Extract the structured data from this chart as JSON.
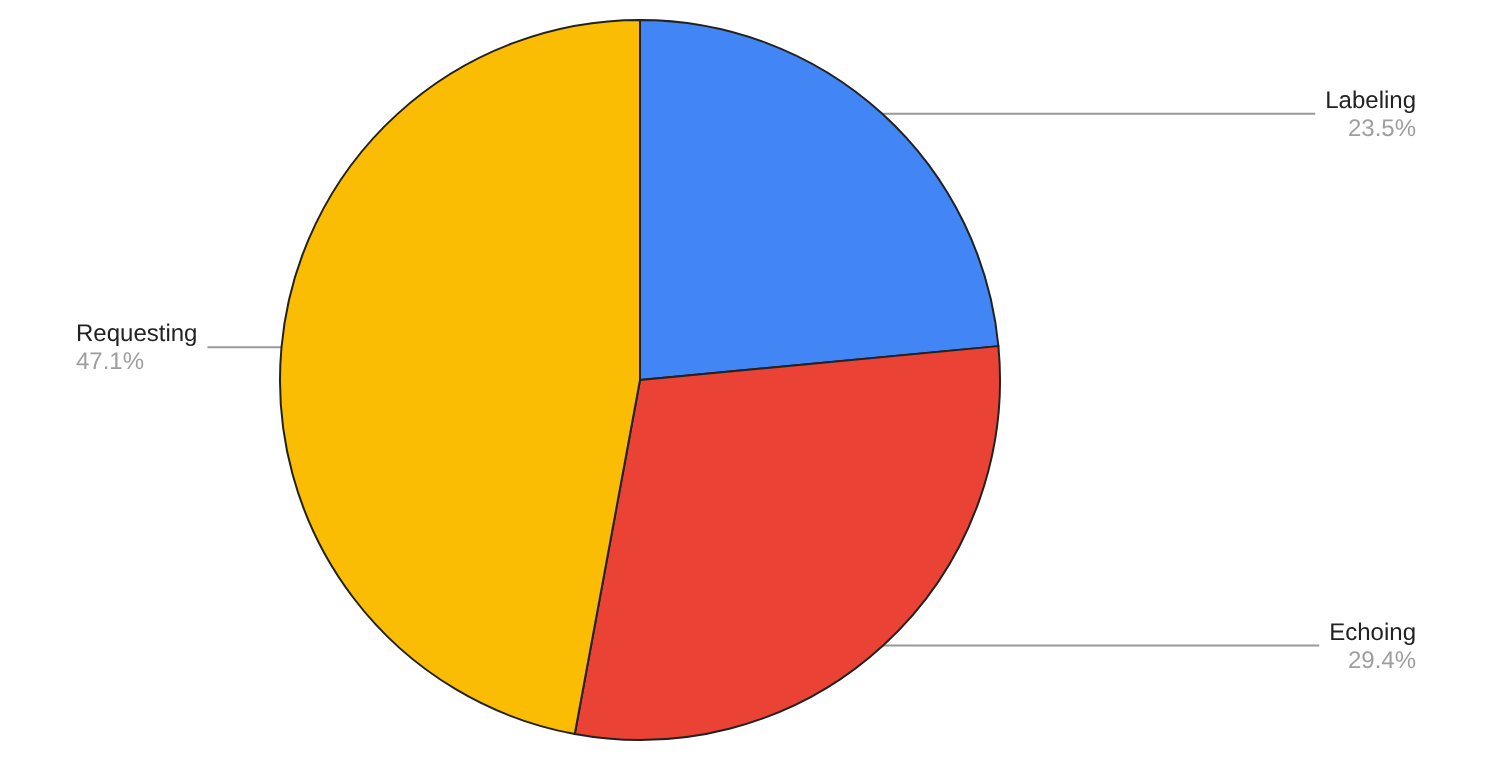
{
  "chart_data": {
    "type": "pie",
    "categories": [
      "Labeling",
      "Echoing",
      "Requesting"
    ],
    "values": [
      23.5,
      29.4,
      47.1
    ],
    "colors": [
      "#4285f4",
      "#ea4335",
      "#fbbc04"
    ],
    "value_labels": [
      "23.5%",
      "29.4%",
      "47.1%"
    ],
    "legend": false
  }
}
